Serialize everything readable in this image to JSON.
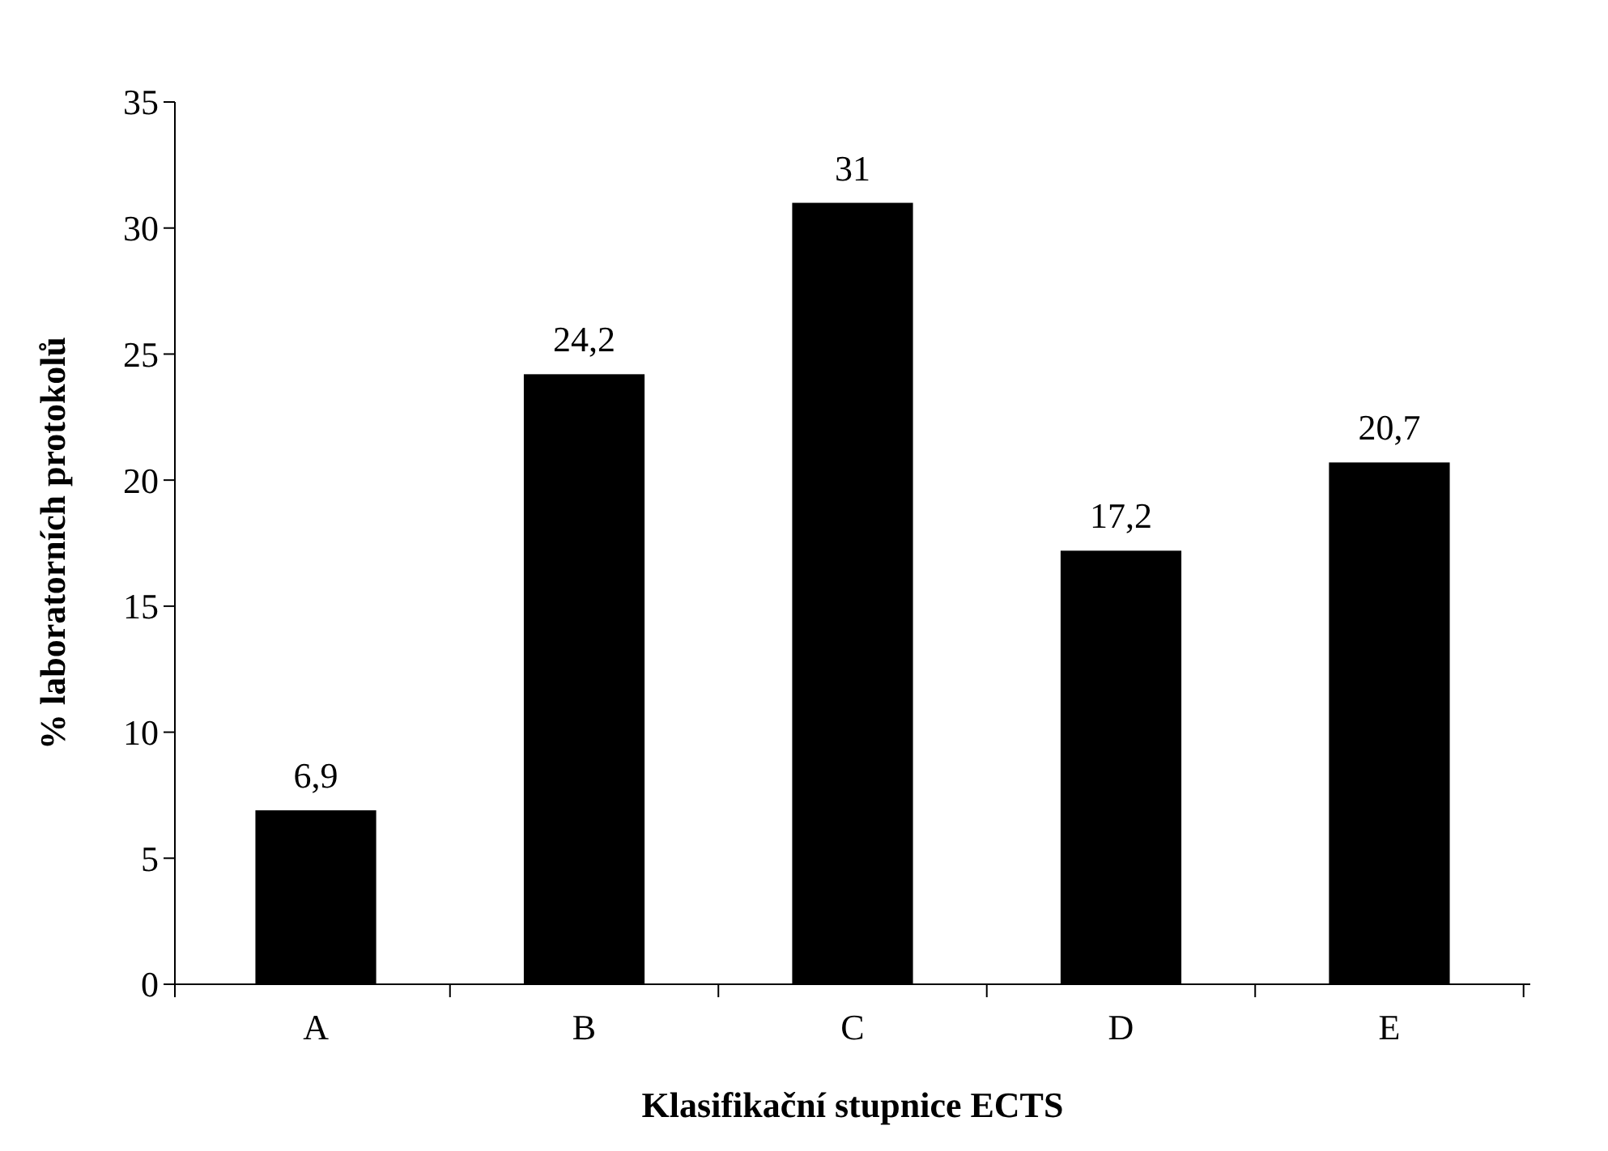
{
  "chart_data": {
    "type": "bar",
    "xlabel": "Klasifikační stupnice ECTS",
    "ylabel": "% laboratorních protokolů",
    "categories": [
      "A",
      "B",
      "C",
      "D",
      "E"
    ],
    "values": [
      6.9,
      24.2,
      31,
      17.2,
      20.7
    ],
    "value_labels": [
      "6,9",
      "24,2",
      "31",
      "17,2",
      "20,7"
    ],
    "color": "#000000",
    "ylim": [
      0,
      35
    ],
    "yticks": [
      0,
      5,
      10,
      15,
      20,
      25,
      30,
      35
    ],
    "grid": false
  }
}
